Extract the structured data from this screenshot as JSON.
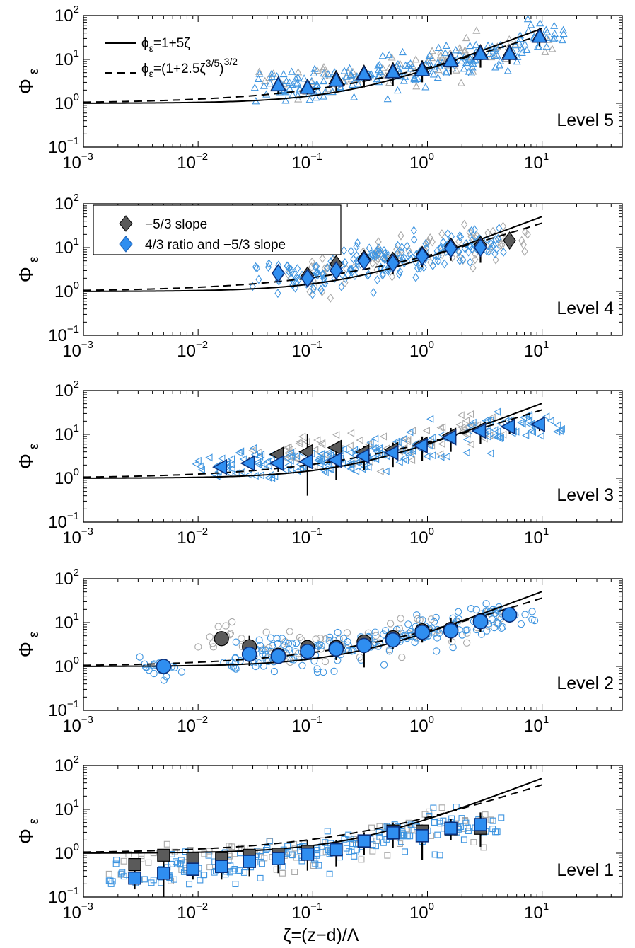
{
  "chart_data": [
    {
      "type": "scatter",
      "panel": "Level 5",
      "x_scale": "log",
      "y_scale": "log",
      "xlim": [
        0.001,
        50
      ],
      "ylim": [
        0.1,
        100
      ],
      "ylabel_main": "Φ",
      "ylabel_sub": "ε",
      "marker": "triangle-up",
      "colors": {
        "bin_fill": "#2f7ce6",
        "bin_gray": "#5a5a5a",
        "scatter_blue": "#3f95e0",
        "scatter_gray": "#a9a9a9"
      },
      "series": [
        {
          "name": "−5/3 slope",
          "x": [
            0.05,
            0.09,
            0.16,
            0.28,
            0.5,
            0.9,
            1.6,
            2.9,
            5.2,
            9.5
          ],
          "y": [
            2.6,
            2.3,
            3.6,
            4.8,
            5.4,
            6.0,
            9.5,
            14,
            14,
            34
          ]
        },
        {
          "name": "4/3 ratio and −5/3 slope",
          "x": [
            0.05,
            0.09,
            0.16,
            0.28,
            0.5,
            0.9,
            1.6,
            2.9,
            5.2,
            9.5
          ],
          "y": [
            2.5,
            2.2,
            3.2,
            4.5,
            5.0,
            5.5,
            9.0,
            13,
            13,
            32
          ],
          "err_low": [
            1.6,
            1.6,
            1.9,
            2.3,
            2.5,
            3.0,
            4.5,
            6.5,
            8,
            20
          ],
          "err_high": [
            3.3,
            3.0,
            5.0,
            7.0,
            8.5,
            9.5,
            15,
            20,
            20,
            40
          ]
        }
      ]
    },
    {
      "type": "scatter",
      "panel": "Level 4",
      "x_scale": "log",
      "y_scale": "log",
      "xlim": [
        0.001,
        50
      ],
      "ylim": [
        0.1,
        100
      ],
      "ylabel_main": "Φ",
      "ylabel_sub": "ε",
      "marker": "diamond",
      "legend": {
        "placement": "top-left",
        "entries": [
          "−5/3 slope",
          "4/3 ratio and −5/3 slope"
        ]
      },
      "series": [
        {
          "name": "−5/3 slope",
          "x": [
            0.09,
            0.16,
            0.28,
            0.5,
            0.9,
            1.6,
            2.9,
            5.2
          ],
          "y": [
            2.3,
            4.2,
            5.5,
            5.0,
            6.8,
            10.5,
            11.5,
            14.5
          ]
        },
        {
          "name": "4/3 ratio and −5/3 slope",
          "x": [
            0.05,
            0.09,
            0.16,
            0.28,
            0.5,
            0.9,
            1.6,
            2.9
          ],
          "y": [
            2.6,
            2.0,
            3.0,
            5.0,
            4.4,
            6.3,
            9.5,
            10.0
          ],
          "err_low": [
            1.9,
            1.5,
            1.9,
            3.2,
            2.5,
            3.5,
            5.0,
            4.5
          ],
          "err_high": [
            3.2,
            2.8,
            4.8,
            7.0,
            6.5,
            8.5,
            14,
            15
          ]
        }
      ]
    },
    {
      "type": "scatter",
      "panel": "Level 3",
      "x_scale": "log",
      "y_scale": "log",
      "xlim": [
        0.001,
        50
      ],
      "ylim": [
        0.1,
        100
      ],
      "ylabel_main": "Φ",
      "ylabel_sub": "ε",
      "marker": "triangle-left",
      "series": [
        {
          "name": "−5/3 slope",
          "x": [
            0.05,
            0.09,
            0.16,
            0.28,
            0.5,
            0.9,
            1.6,
            2.9
          ],
          "y": [
            3.5,
            4.0,
            5.0,
            4.0,
            4.5,
            6.0,
            9.5,
            13
          ]
        },
        {
          "name": "4/3 ratio and −5/3 slope",
          "x": [
            0.016,
            0.028,
            0.05,
            0.09,
            0.16,
            0.28,
            0.5,
            0.9,
            1.6,
            2.9,
            5.2,
            9.5
          ],
          "y": [
            1.8,
            2.2,
            2.2,
            2.4,
            2.6,
            3.2,
            3.8,
            5.5,
            8.5,
            12,
            15,
            17
          ],
          "err_low": [
            1.6,
            1.7,
            1.4,
            0.4,
            0.9,
            1.5,
            1.8,
            2.5,
            4.0,
            6.0,
            10,
            12
          ],
          "err_high": [
            2.0,
            3.0,
            4.0,
            10,
            6.0,
            5.5,
            6.5,
            9.0,
            14,
            16,
            20,
            22
          ]
        }
      ]
    },
    {
      "type": "scatter",
      "panel": "Level 2",
      "x_scale": "log",
      "y_scale": "log",
      "xlim": [
        0.001,
        50
      ],
      "ylim": [
        0.1,
        100
      ],
      "ylabel_main": "Φ",
      "ylabel_sub": "ε",
      "marker": "circle",
      "series": [
        {
          "name": "−5/3 slope",
          "x": [
            0.016,
            0.028,
            0.05,
            0.09,
            0.16,
            0.28,
            0.5,
            0.9,
            1.6,
            2.9
          ],
          "y": [
            4.3,
            2.8,
            1.8,
            2.7,
            2.7,
            3.6,
            4.5,
            6.5,
            7.0,
            11
          ]
        },
        {
          "name": "4/3 ratio and −5/3 slope",
          "x": [
            0.005,
            0.028,
            0.05,
            0.09,
            0.16,
            0.28,
            0.5,
            0.9,
            1.6,
            2.9,
            5.2
          ],
          "y": [
            1.0,
            1.9,
            1.7,
            2.2,
            2.5,
            3.0,
            4.0,
            6.0,
            6.5,
            10.5,
            15
          ],
          "err_low": [
            1.0,
            1.0,
            1.4,
            1.5,
            1.4,
            0.95,
            2.5,
            3.5,
            3.5,
            6.0,
            10
          ],
          "err_high": [
            1.0,
            5.0,
            2.2,
            3.5,
            4.0,
            5.0,
            6.5,
            9.0,
            13,
            16,
            20
          ]
        }
      ]
    },
    {
      "type": "scatter",
      "panel": "Level 1",
      "x_scale": "log",
      "y_scale": "log",
      "xlim": [
        0.001,
        50
      ],
      "ylim": [
        0.1,
        100
      ],
      "ylabel_main": "Φ",
      "ylabel_sub": "ε",
      "marker": "square",
      "xlabel": "ζ=(z−d)/Λ",
      "series": [
        {
          "name": "−5/3 slope",
          "x": [
            0.0028,
            0.005,
            0.009,
            0.016,
            0.028,
            0.05,
            0.09,
            0.16,
            0.28,
            0.5,
            0.9,
            1.6,
            2.9
          ],
          "y": [
            0.55,
            0.9,
            0.75,
            0.75,
            0.9,
            0.95,
            1.1,
            1.25,
            1.9,
            3.2,
            3.2,
            3.6,
            3.7
          ]
        },
        {
          "name": "4/3 ratio and −5/3 slope",
          "x": [
            0.0028,
            0.005,
            0.009,
            0.016,
            0.028,
            0.05,
            0.09,
            0.16,
            0.28,
            0.5,
            0.9,
            1.6,
            2.9
          ],
          "y": [
            0.27,
            0.35,
            0.43,
            0.5,
            0.65,
            0.75,
            0.95,
            1.2,
            1.9,
            2.9,
            2.5,
            3.7,
            4.5
          ],
          "err_low": [
            0.15,
            0.1,
            0.25,
            0.25,
            0.3,
            0.35,
            0.4,
            0.5,
            0.9,
            1.3,
            0.7,
            2.0,
            1.4
          ],
          "err_high": [
            0.4,
            1.1,
            0.8,
            0.8,
            1.1,
            1.2,
            2.0,
            2.0,
            3.0,
            5.0,
            4.5,
            6.0,
            8.5
          ]
        }
      ]
    }
  ],
  "figure": {
    "xlabel": "ζ=(z−d)/Λ",
    "ylabel_main": "Φ",
    "ylabel_sub": "ε",
    "x_tick_bases": [
      "10",
      "10",
      "10",
      "10",
      "10"
    ],
    "x_tick_exps": [
      "−3",
      "−2",
      "−1",
      "0",
      "1"
    ],
    "x_tick_values": [
      0.001,
      0.01,
      0.1,
      1,
      10
    ],
    "y_tick_bases": [
      "10",
      "10",
      "10",
      "10"
    ],
    "y_tick_exps": [
      "2",
      "1",
      "0",
      "−1"
    ],
    "y_tick_values": [
      100,
      10,
      1,
      0.1
    ],
    "panel_labels": [
      "Level 5",
      "Level 4",
      "Level 3",
      "Level 2",
      "Level 1"
    ],
    "theory_lines": [
      {
        "label_main": "ϕ",
        "label_sub": "ε",
        "label_rest": "=1+5ζ",
        "style": "solid",
        "formula": "1+5*zeta"
      },
      {
        "label_main": "ϕ",
        "label_sub": "ε",
        "label_rest": "=(1+2.5ζ",
        "label_sup": "3/5",
        "label_close": ")",
        "label_sup2": "3/2",
        "style": "dashed",
        "formula": "(1+2.5*zeta^(3/5))^(3/2)"
      }
    ],
    "legend_markers": [
      "−5/3 slope",
      "4/3 ratio and −5/3 slope"
    ]
  }
}
